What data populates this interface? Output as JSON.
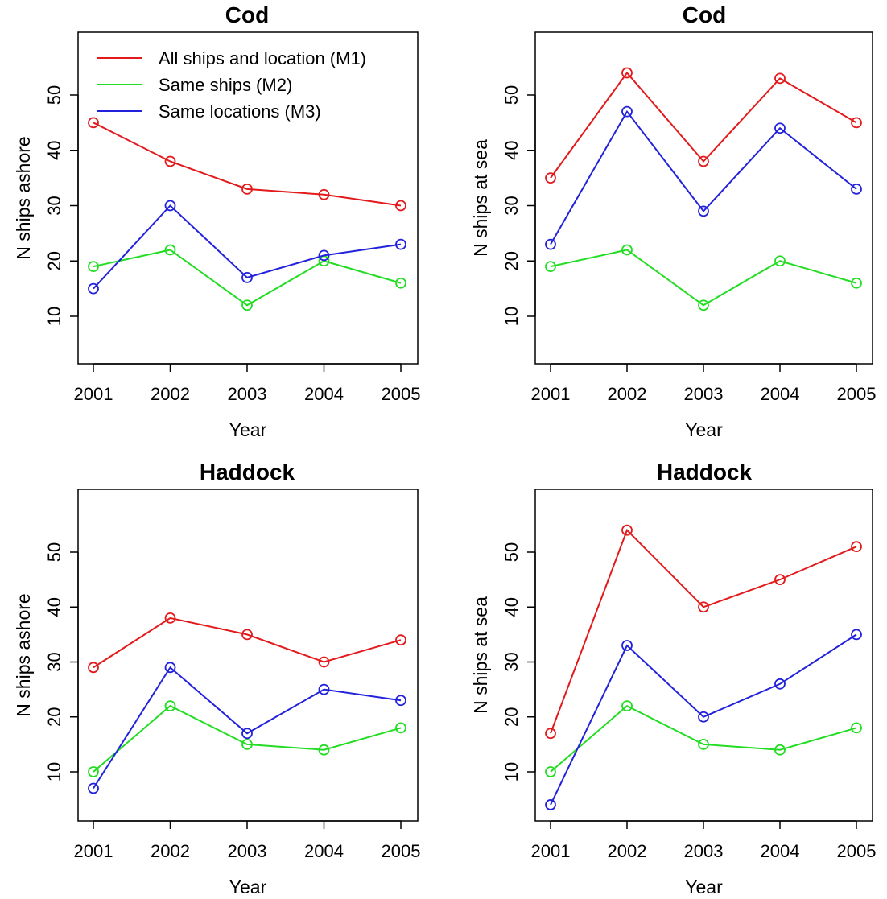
{
  "chart_data": [
    {
      "type": "line",
      "title": "Cod",
      "xlabel": "Year",
      "ylabel": "N ships ashore",
      "x": [
        2001,
        2002,
        2003,
        2004,
        2005
      ],
      "xlim": [
        2001,
        2005
      ],
      "ylim": [
        2,
        56
      ],
      "yticks": [
        10,
        20,
        30,
        40,
        50
      ],
      "grid": false,
      "legend": "top-left",
      "series": [
        {
          "name": "All ships and location (M1)",
          "color": "#e31a1c",
          "values": [
            45,
            38,
            33,
            32,
            30
          ]
        },
        {
          "name": "Same ships (M2)",
          "color": "#22dd22",
          "values": [
            19,
            22,
            12,
            20,
            16
          ]
        },
        {
          "name": "Same locations (M3)",
          "color": "#2222dd",
          "values": [
            15,
            30,
            17,
            21,
            23
          ]
        }
      ]
    },
    {
      "type": "line",
      "title": "Cod",
      "xlabel": "Year",
      "ylabel": "N ships at sea",
      "x": [
        2001,
        2002,
        2003,
        2004,
        2005
      ],
      "xlim": [
        2001,
        2005
      ],
      "ylim": [
        2,
        56
      ],
      "yticks": [
        10,
        20,
        30,
        40,
        50
      ],
      "grid": false,
      "series": [
        {
          "color": "#e31a1c",
          "values": [
            35,
            54,
            38,
            53,
            45
          ]
        },
        {
          "color": "#22dd22",
          "values": [
            19,
            22,
            12,
            20,
            16
          ]
        },
        {
          "color": "#2222dd",
          "values": [
            23,
            47,
            29,
            44,
            33
          ]
        }
      ]
    },
    {
      "type": "line",
      "title": "Haddock",
      "xlabel": "Year",
      "ylabel": "N ships ashore",
      "x": [
        2001,
        2002,
        2003,
        2004,
        2005
      ],
      "xlim": [
        2001,
        2005
      ],
      "ylim": [
        2,
        56
      ],
      "yticks": [
        10,
        20,
        30,
        40,
        50
      ],
      "grid": false,
      "series": [
        {
          "color": "#e31a1c",
          "values": [
            29,
            38,
            35,
            30,
            34
          ]
        },
        {
          "color": "#22dd22",
          "values": [
            10,
            22,
            15,
            14,
            18
          ]
        },
        {
          "color": "#2222dd",
          "values": [
            7,
            29,
            17,
            25,
            23
          ]
        }
      ]
    },
    {
      "type": "line",
      "title": "Haddock",
      "xlabel": "Year",
      "ylabel": "N ships at sea",
      "x": [
        2001,
        2002,
        2003,
        2004,
        2005
      ],
      "xlim": [
        2001,
        2005
      ],
      "ylim": [
        2,
        56
      ],
      "yticks": [
        10,
        20,
        30,
        40,
        50
      ],
      "grid": false,
      "series": [
        {
          "color": "#e31a1c",
          "values": [
            17,
            54,
            40,
            45,
            51
          ]
        },
        {
          "color": "#22dd22",
          "values": [
            10,
            22,
            15,
            14,
            18
          ]
        },
        {
          "color": "#2222dd",
          "values": [
            4,
            33,
            20,
            26,
            35
          ]
        }
      ]
    }
  ]
}
